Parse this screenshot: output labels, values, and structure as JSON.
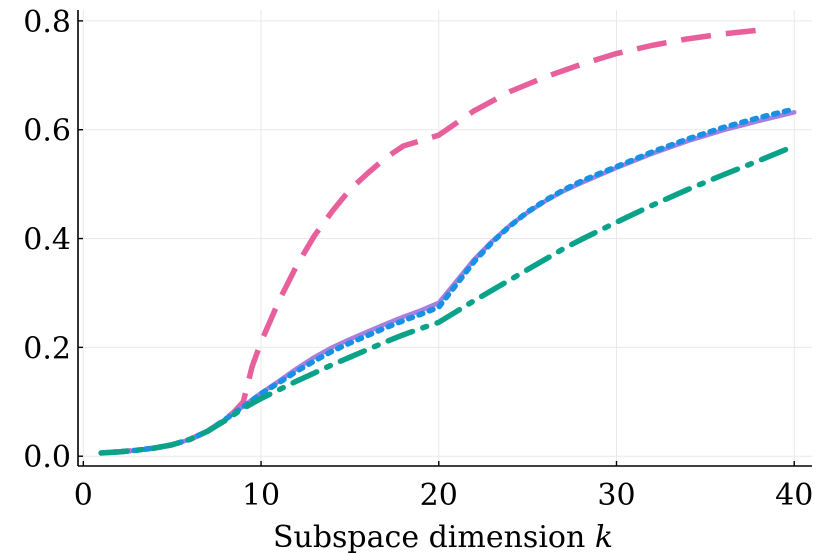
{
  "chart_data": {
    "type": "line",
    "title": "",
    "xlabel": "Subspace dimension",
    "xlabel_var": "k",
    "ylabel": "",
    "xlim": [
      -0.3,
      41.0
    ],
    "ylim": [
      -0.018,
      0.82
    ],
    "x_ticks": [
      0,
      10,
      20,
      30,
      40
    ],
    "x_tick_labels": [
      "0",
      "10",
      "20",
      "30",
      "40"
    ],
    "y_ticks": [
      0.0,
      0.2,
      0.4,
      0.6,
      0.8
    ],
    "y_tick_labels": [
      "0.0",
      "0.2",
      "0.4",
      "0.6",
      "0.8"
    ],
    "grid": true,
    "legend": "none",
    "series": [
      {
        "name": "pink-dashed",
        "color": "#e8609b",
        "style": "dashed",
        "x": [
          1,
          2,
          3,
          4,
          5,
          6,
          7,
          8,
          8.5,
          9,
          9.5,
          10,
          11,
          12,
          13,
          14,
          15,
          16,
          17,
          18,
          19,
          20,
          22,
          24,
          26,
          28,
          30,
          32,
          34,
          36,
          38
        ],
        "y": [
          0.006,
          0.008,
          0.011,
          0.015,
          0.021,
          0.031,
          0.046,
          0.068,
          0.082,
          0.1,
          0.165,
          0.21,
          0.285,
          0.35,
          0.405,
          0.45,
          0.49,
          0.52,
          0.548,
          0.57,
          0.58,
          0.59,
          0.635,
          0.67,
          0.697,
          0.72,
          0.74,
          0.755,
          0.767,
          0.776,
          0.783
        ]
      },
      {
        "name": "purple-solid",
        "color": "#a67fe0",
        "style": "solid",
        "x": [
          1,
          2,
          3,
          4,
          5,
          6,
          7,
          8,
          9,
          10,
          11,
          12,
          13,
          14,
          15,
          16,
          17,
          18,
          19,
          20,
          21,
          22,
          23,
          24,
          25,
          26,
          27,
          28,
          29,
          30,
          32,
          34,
          36,
          38,
          40
        ],
        "y": [
          0.006,
          0.008,
          0.011,
          0.015,
          0.021,
          0.031,
          0.046,
          0.068,
          0.092,
          0.116,
          0.138,
          0.161,
          0.182,
          0.2,
          0.215,
          0.229,
          0.243,
          0.256,
          0.268,
          0.282,
          0.322,
          0.362,
          0.395,
          0.424,
          0.448,
          0.469,
          0.487,
          0.502,
          0.516,
          0.53,
          0.556,
          0.579,
          0.599,
          0.616,
          0.632
        ]
      },
      {
        "name": "blue-dotted",
        "color": "#1a8fe6",
        "style": "dotted",
        "x": [
          1,
          2,
          3,
          4,
          5,
          6,
          7,
          8,
          9,
          10,
          11,
          12,
          13,
          14,
          15,
          16,
          17,
          18,
          19,
          20,
          21,
          22,
          23,
          24,
          25,
          26,
          27,
          28,
          29,
          30,
          32,
          34,
          36,
          38,
          40
        ],
        "y": [
          0.006,
          0.008,
          0.011,
          0.015,
          0.021,
          0.031,
          0.046,
          0.068,
          0.091,
          0.115,
          0.135,
          0.156,
          0.175,
          0.193,
          0.208,
          0.222,
          0.236,
          0.249,
          0.261,
          0.274,
          0.316,
          0.358,
          0.393,
          0.423,
          0.449,
          0.47,
          0.489,
          0.505,
          0.519,
          0.532,
          0.559,
          0.583,
          0.604,
          0.622,
          0.638
        ]
      },
      {
        "name": "green-dashdot",
        "color": "#0aa38a",
        "style": "dashdot",
        "x": [
          1,
          2,
          3,
          4,
          5,
          6,
          7,
          8,
          9,
          10,
          11,
          12,
          13,
          14,
          15,
          16,
          17,
          18,
          19,
          20,
          21,
          22,
          23,
          24,
          25,
          26,
          27,
          28,
          29,
          30,
          32,
          34,
          36,
          38,
          40
        ],
        "y": [
          0.006,
          0.008,
          0.011,
          0.015,
          0.021,
          0.031,
          0.046,
          0.066,
          0.088,
          0.106,
          0.122,
          0.138,
          0.153,
          0.168,
          0.182,
          0.196,
          0.21,
          0.223,
          0.235,
          0.246,
          0.266,
          0.286,
          0.305,
          0.324,
          0.343,
          0.362,
          0.381,
          0.398,
          0.414,
          0.43,
          0.461,
          0.49,
          0.517,
          0.543,
          0.57
        ]
      }
    ]
  }
}
